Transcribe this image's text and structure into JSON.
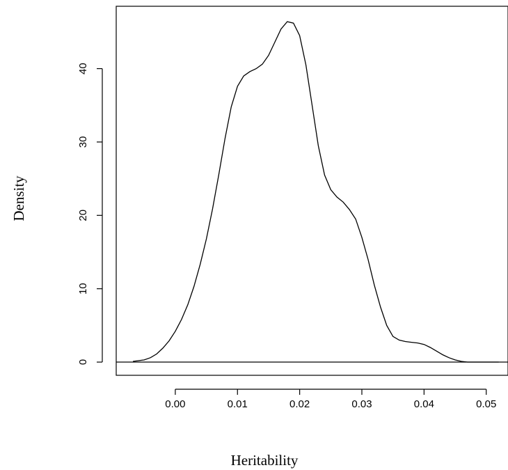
{
  "chart_data": {
    "type": "line",
    "title": "",
    "xlabel": "Heritability",
    "ylabel": "Density",
    "xlim": [
      -0.0095,
      0.0535
    ],
    "ylim": [
      -1.8,
      48.5
    ],
    "x_ticks": [
      "0.00",
      "0.01",
      "0.02",
      "0.03",
      "0.04",
      "0.05"
    ],
    "y_ticks": [
      "0",
      "10",
      "20",
      "30",
      "40"
    ],
    "reference_line": {
      "y": 0
    },
    "grid": false,
    "legend": "none",
    "series": [
      {
        "x": [
          -0.0068,
          -0.005,
          -0.004,
          -0.003,
          -0.002,
          -0.001,
          0.0,
          0.001,
          0.002,
          0.003,
          0.004,
          0.005,
          0.006,
          0.007,
          0.008,
          0.009,
          0.01,
          0.011,
          0.012,
          0.013,
          0.014,
          0.015,
          0.016,
          0.017,
          0.018,
          0.019,
          0.02,
          0.021,
          0.022,
          0.023,
          0.024,
          0.025,
          0.026,
          0.027,
          0.028,
          0.029,
          0.03,
          0.031,
          0.032,
          0.033,
          0.034,
          0.035,
          0.036,
          0.037,
          0.038,
          0.039,
          0.04,
          0.041,
          0.042,
          0.043,
          0.044,
          0.045,
          0.046,
          0.047,
          0.048,
          0.049,
          0.05,
          0.051,
          0.052
        ],
        "y": [
          0.1,
          0.3,
          0.6,
          1.1,
          1.9,
          2.9,
          4.2,
          5.8,
          7.8,
          10.3,
          13.3,
          16.8,
          20.9,
          25.6,
          30.5,
          34.8,
          37.6,
          39.0,
          39.6,
          40.0,
          40.6,
          41.8,
          43.6,
          45.4,
          46.4,
          46.2,
          44.5,
          40.5,
          35.0,
          29.5,
          25.5,
          23.5,
          22.5,
          21.8,
          20.8,
          19.5,
          17.0,
          14.0,
          10.5,
          7.5,
          5.0,
          3.5,
          3.0,
          2.8,
          2.7,
          2.6,
          2.4,
          2.0,
          1.5,
          1.0,
          0.6,
          0.3,
          0.1,
          0.0,
          0.0,
          0.0,
          0.0,
          0.0,
          0.0
        ],
        "color": "#000000"
      }
    ]
  }
}
